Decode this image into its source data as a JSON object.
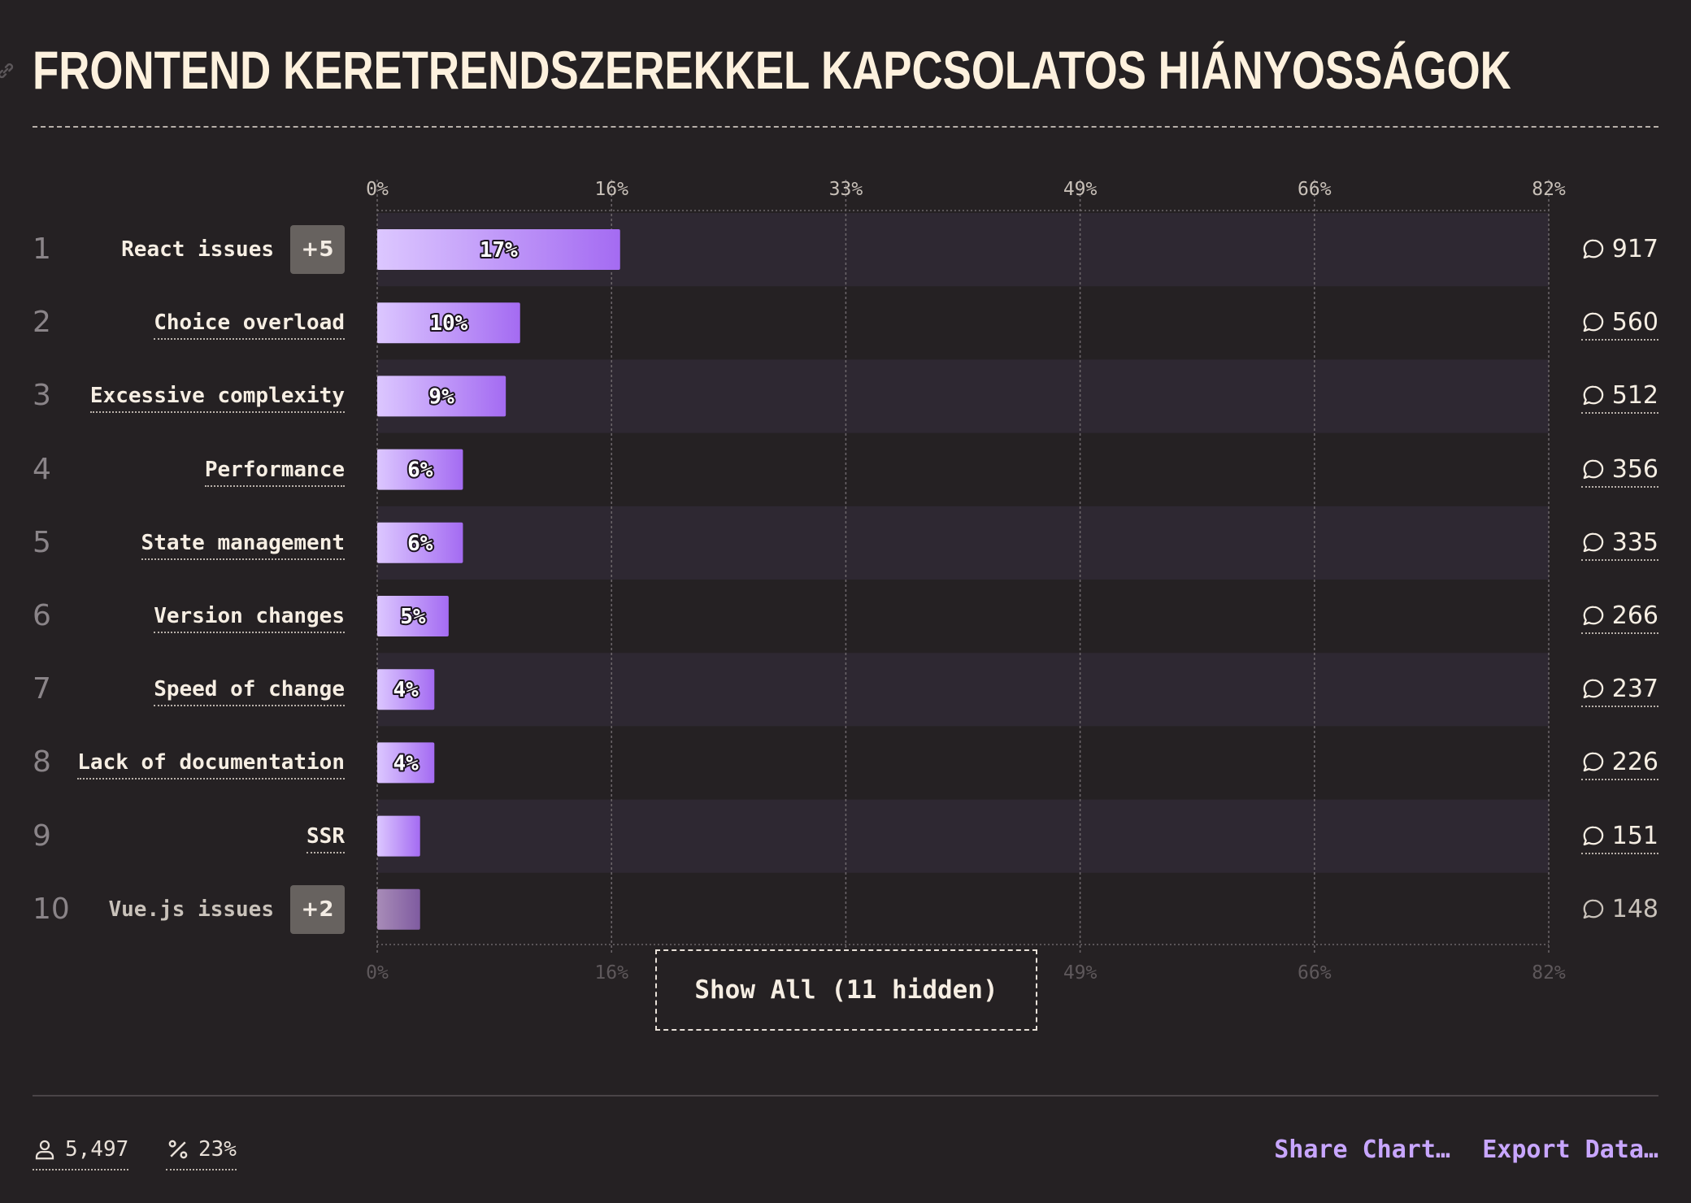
{
  "title": "FRONTEND KERETRENDSZEREKKEL KAPCSOLATOS HIÁNYOSSÁGOK",
  "colors": {
    "background": "#252123",
    "bar_start": "#dcc7ff",
    "bar_end": "#a46bf2",
    "band": "#2e2832",
    "link": "#c8a6ff"
  },
  "chart_data": {
    "type": "bar",
    "orientation": "horizontal",
    "xlim": [
      0,
      82
    ],
    "x_ticks": [
      "0%",
      "16%",
      "33%",
      "49%",
      "66%",
      "82%"
    ],
    "x_tick_values": [
      0,
      16.4,
      32.8,
      49.2,
      65.6,
      82
    ],
    "grid": true,
    "rows": [
      {
        "rank": "1",
        "label": "React issues",
        "percent": 17,
        "percent_label": "17%",
        "count": "917",
        "more": "+5"
      },
      {
        "rank": "2",
        "label": "Choice overload",
        "percent": 10,
        "percent_label": "10%",
        "count": "560"
      },
      {
        "rank": "3",
        "label": "Excessive complexity",
        "percent": 9,
        "percent_label": "9%",
        "count": "512"
      },
      {
        "rank": "4",
        "label": "Performance",
        "percent": 6,
        "percent_label": "6%",
        "count": "356"
      },
      {
        "rank": "5",
        "label": "State management",
        "percent": 6,
        "percent_label": "6%",
        "count": "335"
      },
      {
        "rank": "6",
        "label": "Version changes",
        "percent": 5,
        "percent_label": "5%",
        "count": "266"
      },
      {
        "rank": "7",
        "label": "Speed of change",
        "percent": 4,
        "percent_label": "4%",
        "count": "237"
      },
      {
        "rank": "8",
        "label": "Lack of documentation",
        "percent": 4,
        "percent_label": "4%",
        "count": "226"
      },
      {
        "rank": "9",
        "label": "SSR",
        "percent": 3,
        "percent_label": "",
        "count": "151"
      },
      {
        "rank": "10",
        "label": "Vue.js issues",
        "percent": 3,
        "percent_label": "",
        "count": "148",
        "more": "+2"
      }
    ]
  },
  "show_all_label": "Show All (11 hidden)",
  "footer": {
    "respondents": "5,497",
    "percentage": "23%",
    "share_label": "Share Chart…",
    "export_label": "Export Data…"
  }
}
